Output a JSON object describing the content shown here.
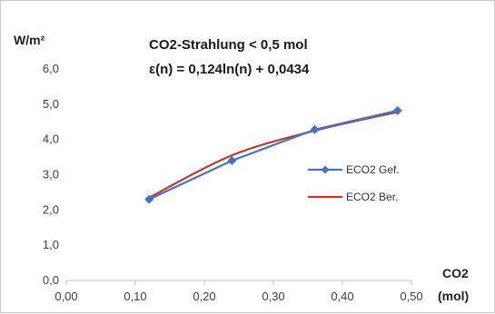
{
  "chart_data": {
    "type": "line",
    "title": "CO2-Strahlung < 0,5 mol",
    "subtitle": "ε(n) = 0,124ln(n) + 0,0434",
    "ylabel": "W/m²",
    "xlabel_line1": "CO2",
    "xlabel_line2": "(mol)",
    "xlim": [
      0,
      0.5
    ],
    "ylim": [
      0,
      6
    ],
    "x_ticks": [
      0,
      0.1,
      0.2,
      0.3,
      0.4,
      0.5
    ],
    "x_tick_labels": [
      "0,00",
      "0,10",
      "0,20",
      "0,30",
      "0,40",
      "0,50"
    ],
    "y_ticks": [
      0,
      1,
      2,
      3,
      4,
      5,
      6
    ],
    "y_tick_labels": [
      "0,0",
      "1,0",
      "2,0",
      "3,0",
      "4,0",
      "5,0",
      "6,0"
    ],
    "grid": false,
    "legend_position": "right",
    "series": [
      {
        "name": "ECO2 Gef.",
        "color": "#4472c4",
        "marker": "diamond",
        "x": [
          0.12,
          0.24,
          0.36,
          0.48
        ],
        "y": [
          2.3,
          3.4,
          4.28,
          4.82
        ]
      },
      {
        "name": "ECO2 Ber.",
        "color": "#c0392b",
        "marker": "none",
        "x": [
          0.12,
          0.24,
          0.36,
          0.48
        ],
        "y": [
          2.35,
          3.55,
          4.25,
          4.78
        ]
      }
    ]
  }
}
